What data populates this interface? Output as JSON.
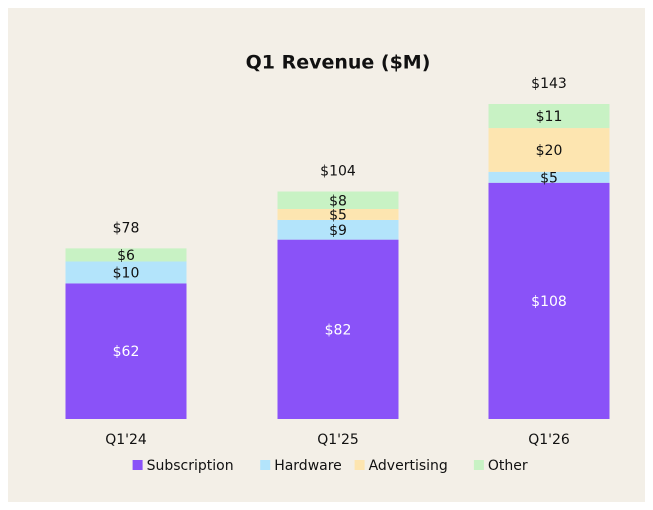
{
  "chart_data": {
    "type": "stacked-bar",
    "title": "Q1 Revenue ($M)",
    "categories": [
      "Q1'24",
      "Q1'25",
      "Q1'26"
    ],
    "series": [
      {
        "name": "Subscription",
        "color": "#8a52f8",
        "values": [
          62,
          82,
          108
        ],
        "value_labels": [
          "$62",
          "$82",
          "$108"
        ]
      },
      {
        "name": "Hardware",
        "color": "#b3e4fb",
        "values": [
          10,
          9,
          5
        ],
        "value_labels": [
          "$10",
          "$9",
          "$5"
        ]
      },
      {
        "name": "Advertising",
        "color": "#fde5b0",
        "values": [
          null,
          5,
          20
        ],
        "value_labels": [
          null,
          "$5",
          "$20"
        ]
      },
      {
        "name": "Other",
        "color": "#c8f2c4",
        "values": [
          6,
          8,
          11
        ],
        "value_labels": [
          "$6",
          "$8",
          "$11"
        ]
      }
    ],
    "totals": [
      78,
      104,
      143
    ],
    "total_labels": [
      "$78",
      "$104",
      "$143"
    ],
    "legend": "bottom"
  }
}
